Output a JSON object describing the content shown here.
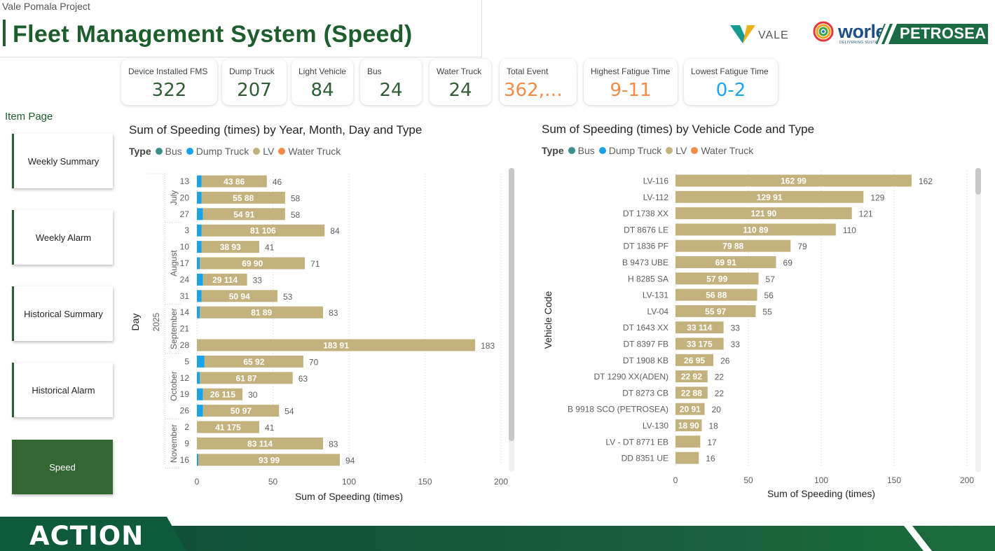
{
  "header": {
    "project": "Vale Pomala Project",
    "title": "Fleet Management System (Speed)"
  },
  "logos": {
    "vale": "VALE",
    "worley": "worley",
    "worley_sub": "DELIVERING SUSTAINABLE CHANGE",
    "petrosea": "PETROSEA"
  },
  "colors": {
    "bus": "#3a8f8a",
    "dump_truck": "#1aa3e8",
    "lv": "#c4b27e",
    "water_truck": "#f28c48",
    "brand_green": "#1e5e2c"
  },
  "kpis": [
    {
      "label": "Device Installed FMS",
      "value": "322",
      "color": "#2f5d35"
    },
    {
      "label": "Dump Truck",
      "value": "207",
      "color": "#2f5d35"
    },
    {
      "label": "Light Vehicle",
      "value": "84",
      "color": "#2f5d35"
    },
    {
      "label": "Bus",
      "value": "24",
      "color": "#2f5d35"
    },
    {
      "label": "Water Truck",
      "value": "24",
      "color": "#2f5d35"
    },
    {
      "label": "Total Event",
      "value": "362,5…",
      "color": "#f28c48"
    },
    {
      "label": "Highest Fatigue Time",
      "value": "9-11",
      "color": "#f28c48"
    },
    {
      "label": "Lowest Fatigue Time",
      "value": "0-2",
      "color": "#1aa3e8"
    }
  ],
  "nav": {
    "heading": "Item Page",
    "items": [
      "Weekly Summary",
      "Weekly Alarm",
      "Historical Summary",
      "Historical Alarm",
      "Speed"
    ],
    "active": "Speed"
  },
  "footer": {
    "brand": "ACTION"
  },
  "chart_data": [
    {
      "type": "bar",
      "orientation": "horizontal",
      "stacked": true,
      "title": "Sum of Speeding (times) by Year, Month, Day and Type",
      "legend_title": "Type",
      "legend": [
        "Bus",
        "Dump Truck",
        "LV",
        "Water Truck"
      ],
      "xlabel": "Sum of Speeding (times)",
      "ylabel": "Day",
      "xlim": [
        0,
        200
      ],
      "xticks": [
        0,
        50,
        100,
        150,
        200
      ],
      "year": "2025",
      "groups": [
        {
          "month": "July",
          "days": [
            {
              "day": "13",
              "dump": 3,
              "lv": 43,
              "label_inner": "43 86",
              "total": 46
            },
            {
              "day": "20",
              "dump": 3,
              "lv": 55,
              "label_inner": "55 88",
              "total": 58
            },
            {
              "day": "27",
              "dump": 4,
              "lv": 54,
              "label_inner": "54 91",
              "total": 58
            }
          ]
        },
        {
          "month": "August",
          "days": [
            {
              "day": "3",
              "dump": 3,
              "lv": 81,
              "label_inner": "81 106",
              "total": 84
            },
            {
              "day": "10",
              "dump": 3,
              "lv": 38,
              "label_inner": "38 93",
              "total": 41
            },
            {
              "day": "17",
              "dump": 2,
              "lv": 69,
              "label_inner": "69 90",
              "total": 71
            },
            {
              "day": "24",
              "dump": 4,
              "lv": 29,
              "label_inner": "29 114",
              "total": 33
            },
            {
              "day": "31",
              "dump": 3,
              "lv": 50,
              "label_inner": "50 94",
              "total": 53
            }
          ]
        },
        {
          "month": "September",
          "days": [
            {
              "day": "14",
              "dump": 2,
              "lv": 81,
              "label_inner": "81 89",
              "total": 83
            },
            {
              "day": "21",
              "dump": 0,
              "lv": 0,
              "label_inner": "",
              "total": null
            },
            {
              "day": "28",
              "dump": 0,
              "lv": 183,
              "label_inner": "183 91",
              "total": 183
            }
          ]
        },
        {
          "month": "October",
          "days": [
            {
              "day": "5",
              "dump": 5,
              "lv": 65,
              "label_inner": "65 92",
              "total": 70
            },
            {
              "day": "12",
              "dump": 2,
              "lv": 61,
              "label_inner": "61 87",
              "total": 63
            },
            {
              "day": "19",
              "dump": 4,
              "lv": 26,
              "label_inner": "26 115",
              "total": 30
            },
            {
              "day": "26",
              "dump": 4,
              "lv": 50,
              "label_inner": "50 97",
              "total": 54
            }
          ]
        },
        {
          "month": "November",
          "days": [
            {
              "day": "2",
              "dump": 0,
              "lv": 41,
              "label_inner": "41 175",
              "total": 41
            },
            {
              "day": "9",
              "dump": 0,
              "lv": 83,
              "label_inner": "83 114",
              "total": 83
            },
            {
              "day": "16",
              "dump": 1,
              "lv": 93,
              "label_inner": "93 99",
              "total": 94
            }
          ]
        }
      ]
    },
    {
      "type": "bar",
      "orientation": "horizontal",
      "stacked": true,
      "title": "Sum of Speeding (times) by Vehicle Code and Type",
      "legend_title": "Type",
      "legend": [
        "Bus",
        "Dump Truck",
        "LV",
        "Water Truck"
      ],
      "xlabel": "Sum of Speeding (times)",
      "ylabel": "Vehicle Code",
      "xlim": [
        0,
        200
      ],
      "xticks": [
        0,
        50,
        100,
        150,
        200
      ],
      "categories": [
        "LV-116",
        "LV-112",
        "DT 1738 XX",
        "DT 8676 LE",
        "DT 1836 PF",
        "B 9473 UBE",
        "H 8285 SA",
        "LV-131",
        "LV-04",
        "DT 1643 XX",
        "DT 8397 FB",
        "DT 1908 KB",
        "DT 1290 XX(ADEN)",
        "DT 8273 CB",
        "B 9918 SCO (PETROSEA)",
        "LV-130",
        "LV - DT 8771 EB",
        "DD 8351 UE"
      ],
      "values": [
        162,
        129,
        121,
        110,
        79,
        69,
        57,
        56,
        55,
        33,
        33,
        26,
        22,
        22,
        20,
        18,
        17,
        16
      ],
      "inner_labels": [
        "162 99",
        "129 91",
        "121 90",
        "110 89",
        "79 88",
        "69 91",
        "57 99",
        "56 88",
        "55 97",
        "33 114",
        "33 175",
        "26 95",
        "22 92",
        "22 88",
        "20 91",
        "18 90",
        "",
        ""
      ],
      "total_labels": [
        "162",
        "129",
        "121",
        "110",
        "79",
        "69",
        "57",
        "56",
        "55",
        "33",
        "33",
        "26",
        "22",
        "22",
        "20",
        "18",
        "17",
        "16"
      ]
    }
  ]
}
